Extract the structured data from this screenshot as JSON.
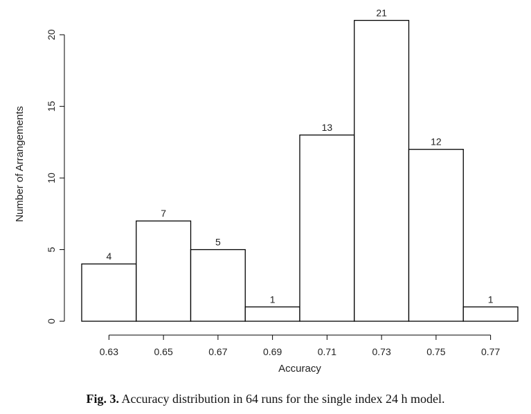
{
  "chart_data": {
    "type": "bar",
    "title": "",
    "xlabel": "Accuracy",
    "ylabel": "Number of Arrangements",
    "bin_edges": [
      0.62,
      0.64,
      0.66,
      0.68,
      0.7,
      0.72,
      0.74,
      0.76,
      0.78
    ],
    "values": [
      4,
      7,
      5,
      1,
      13,
      21,
      12,
      1
    ],
    "data_labels": [
      "4",
      "7",
      "5",
      "1",
      "13",
      "21",
      "12",
      "1"
    ],
    "x_ticks": [
      0.63,
      0.65,
      0.67,
      0.69,
      0.71,
      0.73,
      0.75,
      0.77
    ],
    "x_tick_labels": [
      "0.63",
      "0.65",
      "0.67",
      "0.69",
      "0.71",
      "0.73",
      "0.75",
      "0.77"
    ],
    "y_ticks": [
      0,
      5,
      10,
      15,
      20
    ],
    "y_tick_labels": [
      "0",
      "5",
      "10",
      "15",
      "20"
    ],
    "xlim": [
      0.62,
      0.78
    ],
    "ylim": [
      0,
      21
    ],
    "grid": false,
    "bar_fill": "#ffffff",
    "bar_stroke": "#000000"
  },
  "caption": {
    "label": "Fig. 3.",
    "text": "Accuracy distribution in 64 runs for the single index 24 h model."
  }
}
